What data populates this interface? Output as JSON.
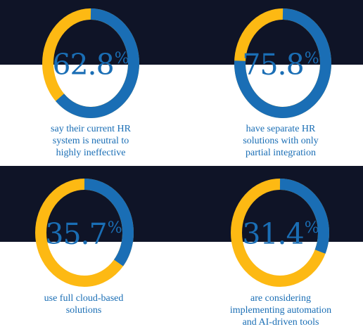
{
  "colors": {
    "dark_band": "#0f1427",
    "ring_highlight": "#1a6eb5",
    "ring_rest": "#fdb913",
    "text": "#1a6eb5"
  },
  "chart_data": [
    {
      "type": "pie",
      "value": 62.8,
      "label": "62.8",
      "unit": "%",
      "caption": [
        "say their current HR",
        "system is neutral to",
        "highly ineffective"
      ]
    },
    {
      "type": "pie",
      "value": 75.8,
      "label": "75.8",
      "unit": "%",
      "caption": [
        "have separate HR",
        "solutions with only",
        "partial integration"
      ]
    },
    {
      "type": "pie",
      "value": 35.7,
      "label": "35.7",
      "unit": "%",
      "caption": [
        "use full cloud-based",
        "solutions"
      ]
    },
    {
      "type": "pie",
      "value": 31.4,
      "label": "31.4",
      "unit": "%",
      "caption": [
        "are considering",
        "implementing automation",
        "and AI-driven tools"
      ]
    }
  ]
}
